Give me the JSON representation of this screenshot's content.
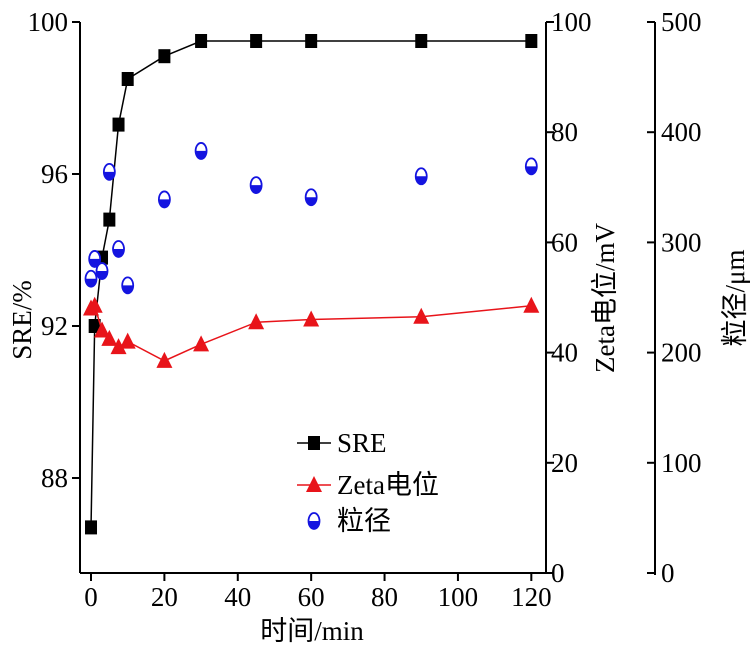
{
  "chart_data": {
    "type": "line",
    "xlabel": "时间/min",
    "x_ticks": [
      0,
      20,
      40,
      60,
      80,
      100,
      120
    ],
    "xlim": [
      -3,
      124
    ],
    "axes": {
      "left": {
        "label": "SRE/%",
        "lim": [
          85.5,
          100
        ],
        "ticks": [
          88,
          92,
          96,
          100
        ]
      },
      "right1": {
        "label": "Zeta电位/mV",
        "lim": [
          0,
          100
        ],
        "ticks": [
          0,
          20,
          40,
          60,
          80,
          100
        ]
      },
      "right2": {
        "label": "粒径/μm",
        "lim": [
          0,
          500
        ],
        "ticks": [
          0,
          100,
          200,
          300,
          400,
          500
        ]
      }
    },
    "series": [
      {
        "name": "SRE",
        "axis": "left",
        "marker": "square",
        "color": "#000000",
        "x": [
          0,
          1,
          3,
          5,
          7.5,
          10,
          20,
          30,
          45,
          60,
          90,
          120
        ],
        "y": [
          86.7,
          92.0,
          93.8,
          94.8,
          97.3,
          98.5,
          99.1,
          99.5,
          99.5,
          99.5,
          99.5,
          99.5
        ]
      },
      {
        "name": "Zeta电位",
        "axis": "right1",
        "marker": "triangle",
        "color": "#e8141a",
        "x": [
          0,
          1,
          3,
          5,
          7.5,
          10,
          20,
          30,
          45,
          60,
          90,
          120
        ],
        "y": [
          48,
          48.5,
          44,
          42.5,
          41,
          42,
          38.5,
          41.5,
          45.5,
          46,
          46.5,
          48.5
        ]
      },
      {
        "name": "粒径",
        "axis": "right2",
        "marker": "half-circle",
        "color": "#1414e0",
        "x": [
          0,
          1,
          3,
          5,
          7.5,
          10,
          20,
          30,
          45,
          60,
          90,
          120
        ],
        "y": [
          267,
          285,
          274,
          364,
          294,
          261,
          339,
          383,
          352,
          341,
          360,
          369
        ]
      }
    ],
    "legend": {
      "position": "bottom-center",
      "entries": [
        "SRE",
        "Zeta电位",
        "粒径"
      ]
    }
  }
}
